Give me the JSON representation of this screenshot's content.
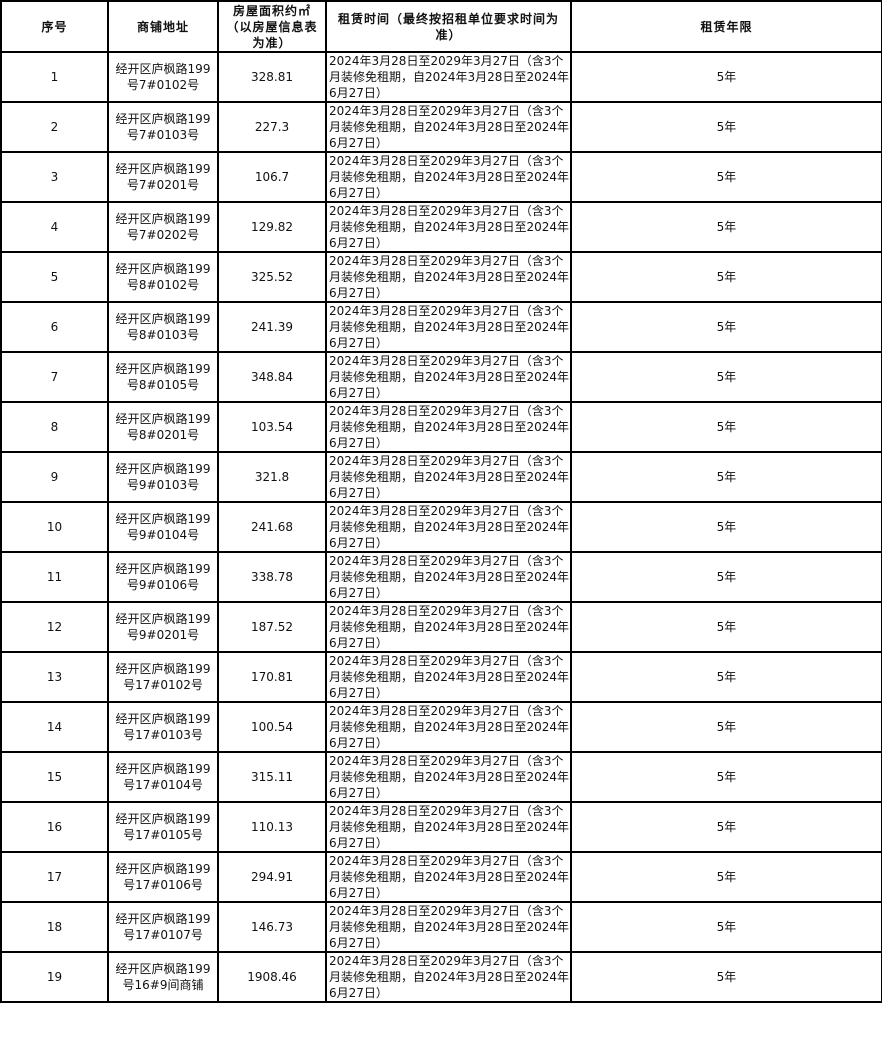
{
  "headers": [
    "序号",
    "商铺地址",
    "房屋面积约㎡（以房屋信息表为准）",
    "租赁时间（最终按招租单位要求时间为准）",
    "租赁年限"
  ],
  "rows": [
    {
      "no": "1",
      "address": "经开区庐枫路199号7#0102号",
      "area": "328.81",
      "period": "2024年3月28日至2029年3月27日（含3个月装修免租期，自2024年3月28日至2024年6月27日）",
      "term": "5年"
    },
    {
      "no": "2",
      "address": "经开区庐枫路199号7#0103号",
      "area": "227.3",
      "period": "2024年3月28日至2029年3月27日（含3个月装修免租期，自2024年3月28日至2024年6月27日）",
      "term": "5年"
    },
    {
      "no": "3",
      "address": "经开区庐枫路199号7#0201号",
      "area": "106.7",
      "period": "2024年3月28日至2029年3月27日（含3个月装修免租期，自2024年3月28日至2024年6月27日）",
      "term": "5年"
    },
    {
      "no": "4",
      "address": "经开区庐枫路199号7#0202号",
      "area": "129.82",
      "period": "2024年3月28日至2029年3月27日（含3个月装修免租期，自2024年3月28日至2024年6月27日）",
      "term": "5年"
    },
    {
      "no": "5",
      "address": "经开区庐枫路199号8#0102号",
      "area": "325.52",
      "period": "2024年3月28日至2029年3月27日（含3个月装修免租期，自2024年3月28日至2024年6月27日）",
      "term": "5年"
    },
    {
      "no": "6",
      "address": "经开区庐枫路199号8#0103号",
      "area": "241.39",
      "period": "2024年3月28日至2029年3月27日（含3个月装修免租期，自2024年3月28日至2024年6月27日）",
      "term": "5年"
    },
    {
      "no": "7",
      "address": "经开区庐枫路199号8#0105号",
      "area": "348.84",
      "period": "2024年3月28日至2029年3月27日（含3个月装修免租期，自2024年3月28日至2024年6月27日）",
      "term": "5年"
    },
    {
      "no": "8",
      "address": "经开区庐枫路199号8#0201号",
      "area": "103.54",
      "period": "2024年3月28日至2029年3月27日（含3个月装修免租期，自2024年3月28日至2024年6月27日）",
      "term": "5年"
    },
    {
      "no": "9",
      "address": "经开区庐枫路199号9#0103号",
      "area": "321.8",
      "period": "2024年3月28日至2029年3月27日（含3个月装修免租期，自2024年3月28日至2024年6月27日）",
      "term": "5年"
    },
    {
      "no": "10",
      "address": "经开区庐枫路199号9#0104号",
      "area": "241.68",
      "period": "2024年3月28日至2029年3月27日（含3个月装修免租期，自2024年3月28日至2024年6月27日）",
      "term": "5年"
    },
    {
      "no": "11",
      "address": "经开区庐枫路199号9#0106号",
      "area": "338.78",
      "period": "2024年3月28日至2029年3月27日（含3个月装修免租期，自2024年3月28日至2024年6月27日）",
      "term": "5年"
    },
    {
      "no": "12",
      "address": "经开区庐枫路199号9#0201号",
      "area": "187.52",
      "period": "2024年3月28日至2029年3月27日（含3个月装修免租期，自2024年3月28日至2024年6月27日）",
      "term": "5年"
    },
    {
      "no": "13",
      "address": "经开区庐枫路199号17#0102号",
      "area": "170.81",
      "period": "2024年3月28日至2029年3月27日（含3个月装修免租期，自2024年3月28日至2024年6月27日）",
      "term": "5年"
    },
    {
      "no": "14",
      "address": "经开区庐枫路199号17#0103号",
      "area": "100.54",
      "period": "2024年3月28日至2029年3月27日（含3个月装修免租期，自2024年3月28日至2024年6月27日）",
      "term": "5年"
    },
    {
      "no": "15",
      "address": "经开区庐枫路199号17#0104号",
      "area": "315.11",
      "period": "2024年3月28日至2029年3月27日（含3个月装修免租期，自2024年3月28日至2024年6月27日）",
      "term": "5年"
    },
    {
      "no": "16",
      "address": "经开区庐枫路199号17#0105号",
      "area": "110.13",
      "period": "2024年3月28日至2029年3月27日（含3个月装修免租期，自2024年3月28日至2024年6月27日）",
      "term": "5年"
    },
    {
      "no": "17",
      "address": "经开区庐枫路199号17#0106号",
      "area": "294.91",
      "period": "2024年3月28日至2029年3月27日（含3个月装修免租期，自2024年3月28日至2024年6月27日）",
      "term": "5年"
    },
    {
      "no": "18",
      "address": "经开区庐枫路199号17#0107号",
      "area": "146.73",
      "period": "2024年3月28日至2029年3月27日（含3个月装修免租期，自2024年3月28日至2024年6月27日）",
      "term": "5年"
    },
    {
      "no": "19",
      "address": "经开区庐枫路199号16#9间商铺",
      "area": "1908.46",
      "period": "2024年3月28日至2029年3月27日（含3个月装修免租期，自2024年3月28日至2024年6月27日）",
      "term": "5年"
    }
  ]
}
